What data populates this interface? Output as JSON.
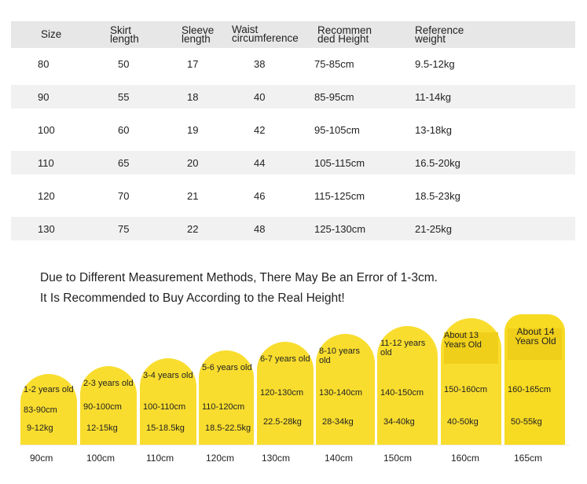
{
  "size_table": {
    "headers": [
      "Size",
      "Skirt length",
      "Sleeve length",
      "Waist circumference",
      "Recommended Height",
      "Reference weight"
    ],
    "header_lines": [
      [
        "Size"
      ],
      [
        "Skirt",
        "length"
      ],
      [
        "Sleeve",
        "length"
      ],
      [
        "Waist",
        "circumference"
      ],
      [
        "Recommen",
        "ded Height"
      ],
      [
        "Reference",
        "weight"
      ]
    ],
    "rows": [
      [
        "80",
        "50",
        "17",
        "38",
        "75-85cm",
        "9.5-12kg"
      ],
      [
        "90",
        "55",
        "18",
        "40",
        "85-95cm",
        "11-14kg"
      ],
      [
        "100",
        "60",
        "19",
        "42",
        "95-105cm",
        "13-18kg"
      ],
      [
        "110",
        "65",
        "20",
        "44",
        "105-115cm",
        "16.5-20kg"
      ],
      [
        "120",
        "70",
        "21",
        "46",
        "115-125cm",
        "18.5-23kg"
      ],
      [
        "130",
        "75",
        "22",
        "48",
        "125-130cm",
        "21-25kg"
      ]
    ]
  },
  "notes": {
    "line1": "Due to Different Measurement Methods, There May Be an Error of 1-3cm.",
    "line2": "It Is Recommended to Buy According to the Real Height!"
  },
  "colors": {
    "bar": "#f9dd2e",
    "bar_dark": "#f0cf1a",
    "row_shade": "#f1f1f1",
    "header_bg": "#e7e7e7"
  },
  "chart_data": {
    "type": "bar",
    "title": "",
    "xlabel": "",
    "ylabel": "",
    "categories": [
      "90cm",
      "100cm",
      "110cm",
      "120cm",
      "130cm",
      "140cm",
      "150cm",
      "160cm",
      "165cm"
    ],
    "series": [
      {
        "values": [
          90,
          100,
          110,
          120,
          130,
          140,
          150,
          160,
          165
        ]
      }
    ],
    "age": [
      "1-2 years old",
      "2-3 years old",
      "3-4 years old",
      "5-6 years old",
      "6-7 years old",
      "8-10 years old",
      "11-12 years old",
      "About 13 Years Old",
      "About 14 Years Old"
    ],
    "height_range": [
      "83-90cm",
      "90-100cm",
      "100-110cm",
      "110-120cm",
      "120-130cm",
      "130-140cm",
      "140-150cm",
      "150-160cm",
      "160-165cm"
    ],
    "weight_range": [
      "9-12kg",
      "12-15kg",
      "15-18.5kg",
      "18.5-22.5kg",
      "22.5-28kg",
      "28-34kg",
      "34-40kg",
      "40-50kg",
      "50-55kg"
    ],
    "ylim": [
      0,
      170
    ]
  }
}
